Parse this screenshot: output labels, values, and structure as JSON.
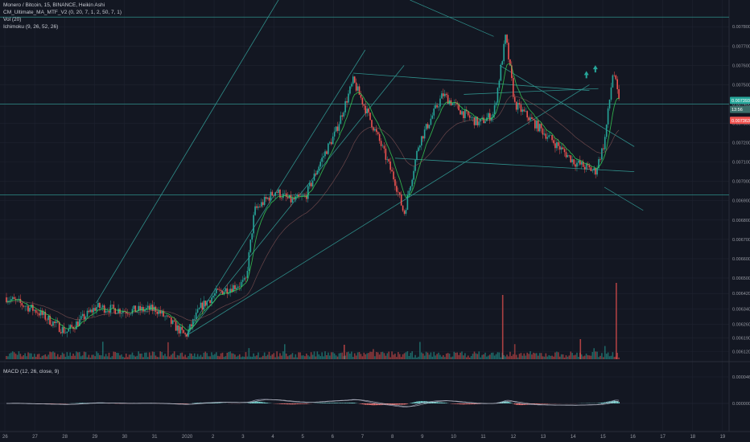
{
  "legend": {
    "title": "Monero / Bitcoin, 15, BINANCE, Heikin Ashi",
    "ma": "CM_Ultimate_MA_MTF_V2 (0, 20, 7, 1, 2, 50, 7, 1)",
    "vol": "Vol (20)",
    "ichimoku": "Ichimoku (9, 26, 52, 26)",
    "macd": "MACD (12, 26, close, 9)"
  },
  "colors": {
    "background": "#131722",
    "grid": "#1f2330",
    "up": "#26a69a",
    "down": "#ef5350",
    "trendline": "#2f8f8a",
    "macd_line": "#8a8fa3",
    "signal_line": "#d5d7de",
    "hist_up": "#7ee0dc",
    "hist_down": "#f57a7a",
    "tag_green": "#26a69a",
    "tag_teal": "#3b6e6a",
    "tag_red": "#ef5350",
    "ma_green": "#39e05a"
  },
  "chart_data": {
    "type": "candlestick",
    "title": "Monero / Bitcoin, 15, BINANCE, Heikin Ashi",
    "x_ticks": [
      "26",
      "27",
      "28",
      "29",
      "30",
      "31",
      "2020",
      "2",
      "3",
      "4",
      "5",
      "6",
      "7",
      "8",
      "9",
      "10",
      "11",
      "12",
      "13",
      "14",
      "15",
      "16",
      "17",
      "18",
      "19"
    ],
    "y_ticks": [
      "0.007800",
      "0.007700",
      "0.007600",
      "0.007500",
      "0.007400",
      "0.007300",
      "0.007200",
      "0.007100",
      "0.007000",
      "0.006900",
      "0.006800",
      "0.006700",
      "0.006600",
      "0.006500",
      "0.006420",
      "0.006340",
      "0.006260",
      "0.006190",
      "0.006120"
    ],
    "ylim": [
      0.00608,
      0.00788
    ],
    "price_tags": [
      "0.007393",
      "13:56",
      "0.007363"
    ],
    "macd_ticks": [
      "0.000046",
      "0.000000"
    ],
    "close_path": [
      {
        "day": 0.0,
        "price": 0.0064
      },
      {
        "day": 1.0,
        "price": 0.00633
      },
      {
        "day": 2.0,
        "price": 0.00622
      },
      {
        "day": 3.0,
        "price": 0.00635
      },
      {
        "day": 4.0,
        "price": 0.00633
      },
      {
        "day": 5.0,
        "price": 0.00634
      },
      {
        "day": 6.0,
        "price": 0.0062
      },
      {
        "day": 6.5,
        "price": 0.00635
      },
      {
        "day": 7.0,
        "price": 0.00642
      },
      {
        "day": 8.0,
        "price": 0.00648
      },
      {
        "day": 8.3,
        "price": 0.00685
      },
      {
        "day": 9.0,
        "price": 0.00695
      },
      {
        "day": 9.5,
        "price": 0.0069
      },
      {
        "day": 10.0,
        "price": 0.00692
      },
      {
        "day": 10.5,
        "price": 0.0071
      },
      {
        "day": 11.0,
        "price": 0.00725
      },
      {
        "day": 11.6,
        "price": 0.00752
      },
      {
        "day": 12.0,
        "price": 0.00738
      },
      {
        "day": 12.5,
        "price": 0.0072
      },
      {
        "day": 13.0,
        "price": 0.007
      },
      {
        "day": 13.3,
        "price": 0.00683
      },
      {
        "day": 13.8,
        "price": 0.0072
      },
      {
        "day": 14.6,
        "price": 0.00745
      },
      {
        "day": 15.3,
        "price": 0.00735
      },
      {
        "day": 15.8,
        "price": 0.0073
      },
      {
        "day": 16.3,
        "price": 0.00735
      },
      {
        "day": 16.7,
        "price": 0.00775
      },
      {
        "day": 17.0,
        "price": 0.0074
      },
      {
        "day": 18.0,
        "price": 0.00725
      },
      {
        "day": 19.0,
        "price": 0.0071
      },
      {
        "day": 19.7,
        "price": 0.00705
      },
      {
        "day": 20.0,
        "price": 0.0072
      },
      {
        "day": 20.3,
        "price": 0.00758
      },
      {
        "day": 20.5,
        "price": 0.0074
      }
    ]
  }
}
